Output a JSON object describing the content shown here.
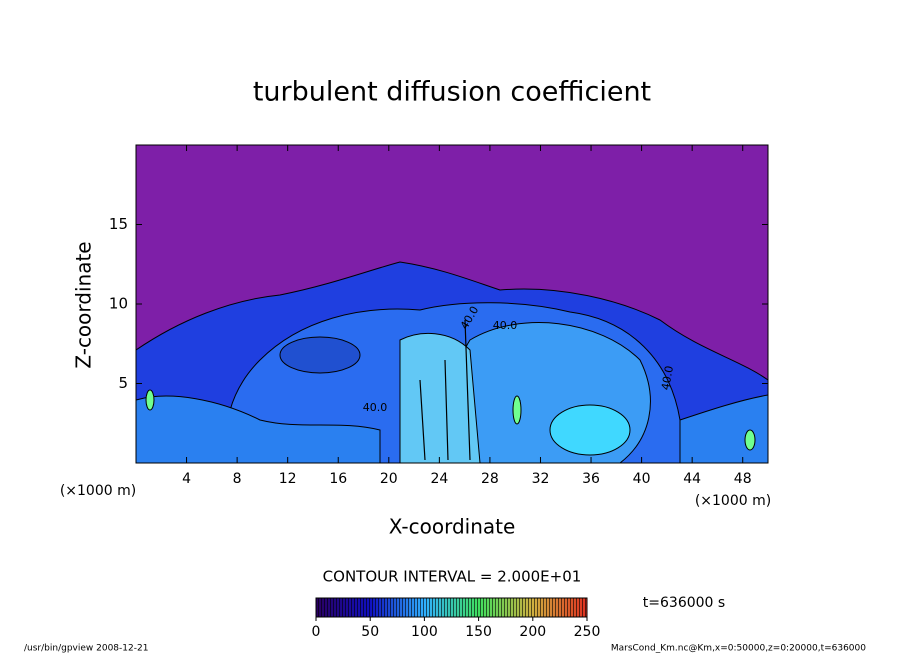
{
  "chart_data": {
    "type": "heatmap",
    "title": "turbulent diffusion coefficient",
    "xlabel": "X-coordinate",
    "ylabel": "Z-coordinate",
    "x_unit_labels": [
      "(×1000 m)",
      "(×1000 m)"
    ],
    "xlim": [
      0,
      50
    ],
    "ylim": [
      0,
      20
    ],
    "xticks": [
      4,
      8,
      12,
      16,
      20,
      24,
      28,
      32,
      36,
      40,
      44,
      48
    ],
    "yticks": [
      5,
      10,
      15
    ],
    "contour_labels": [
      "40.0",
      "40.0",
      "40.0",
      "40.0"
    ],
    "contour_interval": "CONTOUR INTERVAL = 2.000E+01",
    "colorbar": {
      "clim": [
        0,
        250
      ],
      "ticks": [
        0,
        50,
        100,
        150,
        200,
        250
      ]
    },
    "time_label": "t=636000 s",
    "footer_left": "/usr/bin/gpview   2008-12-21",
    "footer_right": "MarsCond_Km.nc@Km,x=0:50000,z=0:20000,t=636000"
  }
}
